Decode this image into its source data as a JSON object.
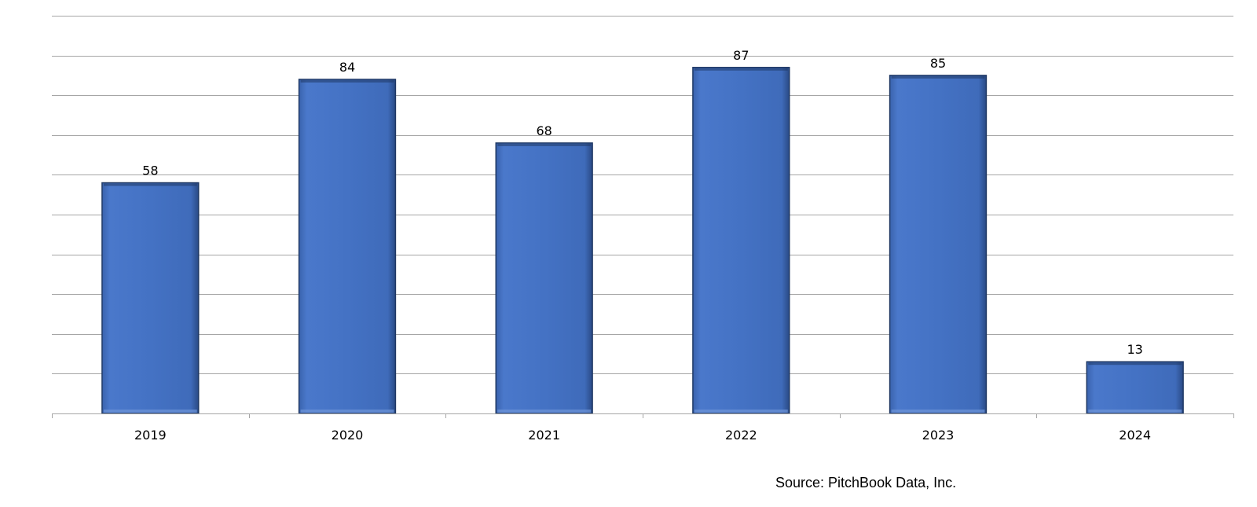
{
  "chart_data": {
    "type": "bar",
    "title": "",
    "xlabel": "",
    "ylabel": "",
    "categories": [
      "2019",
      "2020",
      "2021",
      "2022",
      "2023",
      "2024"
    ],
    "values": [
      58,
      84,
      68,
      87,
      85,
      13
    ],
    "data_labels": [
      "58",
      "84",
      "68",
      "87",
      "85",
      "13"
    ],
    "ylim": [
      0,
      100
    ],
    "gridline_step": 10,
    "grid": true,
    "y_tick_labels_shown": false,
    "legend": "none",
    "bar_color": "#4472c4",
    "bar_edge_color": "#1f3864"
  },
  "source_note": "Source: PitchBook Data, Inc."
}
